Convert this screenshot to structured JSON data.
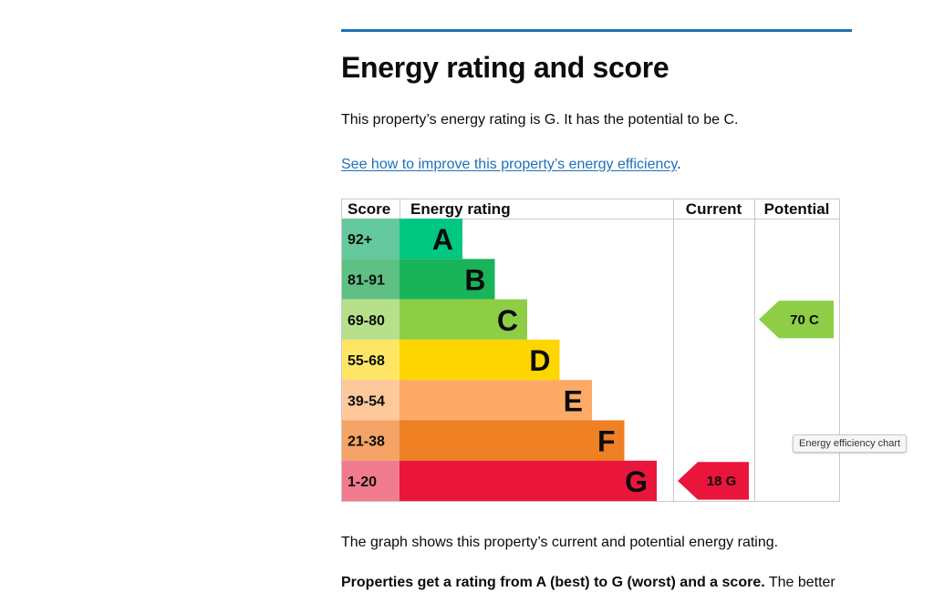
{
  "page": {
    "title": "Energy rating and score",
    "summary": "This property’s energy rating is G. It has the potential to be C.",
    "link_text": "See how to improve this property’s energy efficiency",
    "link_suffix": ".",
    "graph_caption": "The graph shows this property’s current and potential energy rating.",
    "bottom_bold": "Properties get a rating from A (best) to G (worst) and a score.",
    "bottom_rest": " The better"
  },
  "tooltip": "Energy efficiency chart",
  "colors": {
    "accent_rule": "#1d70b8",
    "link": "#1d70b8"
  },
  "chart_data": {
    "type": "bar",
    "headers": {
      "score": "Score",
      "rating": "Energy rating",
      "current": "Current",
      "potential": "Potential"
    },
    "bands": [
      {
        "letter": "A",
        "score": "92+",
        "color": "#00c781",
        "score_color": "#64c99c"
      },
      {
        "letter": "B",
        "score": "81-91",
        "color": "#19b459",
        "score_color": "#5ec083"
      },
      {
        "letter": "C",
        "score": "69-80",
        "color": "#8dce46",
        "score_color": "#b6e08a"
      },
      {
        "letter": "D",
        "score": "55-68",
        "color": "#ffd500",
        "score_color": "#ffe566"
      },
      {
        "letter": "E",
        "score": "39-54",
        "color": "#fcaa65",
        "score_color": "#fdc89a"
      },
      {
        "letter": "F",
        "score": "21-38",
        "color": "#ef8023",
        "score_color": "#f4a466"
      },
      {
        "letter": "G",
        "score": "1-20",
        "color": "#e9153b",
        "score_color": "#f07a8e"
      }
    ],
    "current": {
      "score": 18,
      "letter": "G",
      "label": "18  G",
      "color": "#e9153b",
      "text_color": "#0b0c0c"
    },
    "potential": {
      "score": 70,
      "letter": "C",
      "label": "70  C",
      "color": "#8dce46",
      "text_color": "#0b0c0c"
    }
  }
}
